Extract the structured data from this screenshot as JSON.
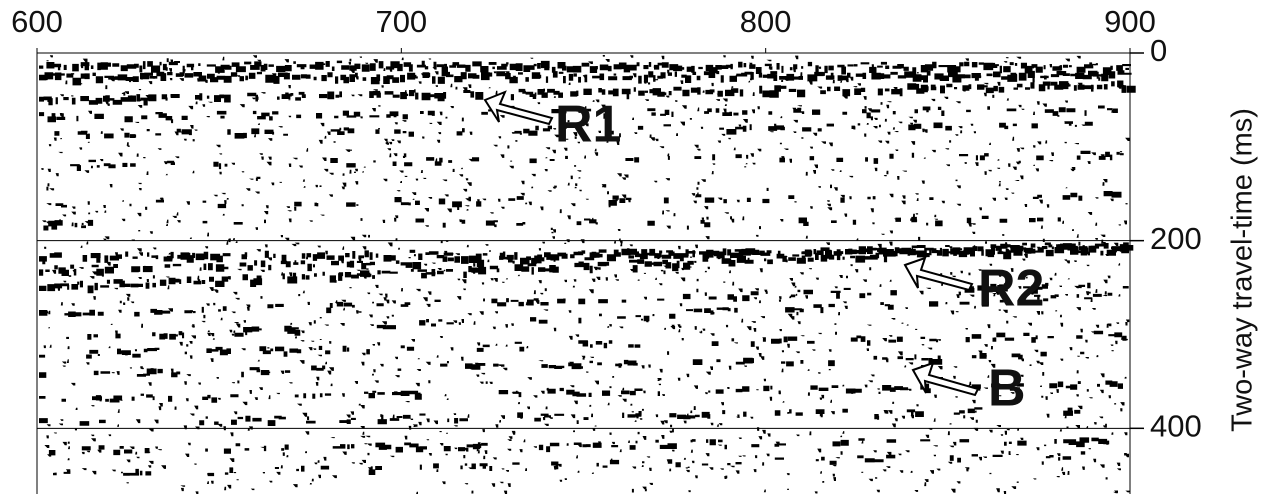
{
  "chart_data": {
    "type": "seismic-section",
    "xlim": [
      600,
      900
    ],
    "xticks": [
      600,
      700,
      800,
      900
    ],
    "ylim": [
      0,
      470
    ],
    "yticks": [
      0,
      200,
      400
    ],
    "y_label": "Two-way travel-time (ms)",
    "grid": true,
    "annotations": [
      "R1",
      "R2",
      "B"
    ]
  }
}
